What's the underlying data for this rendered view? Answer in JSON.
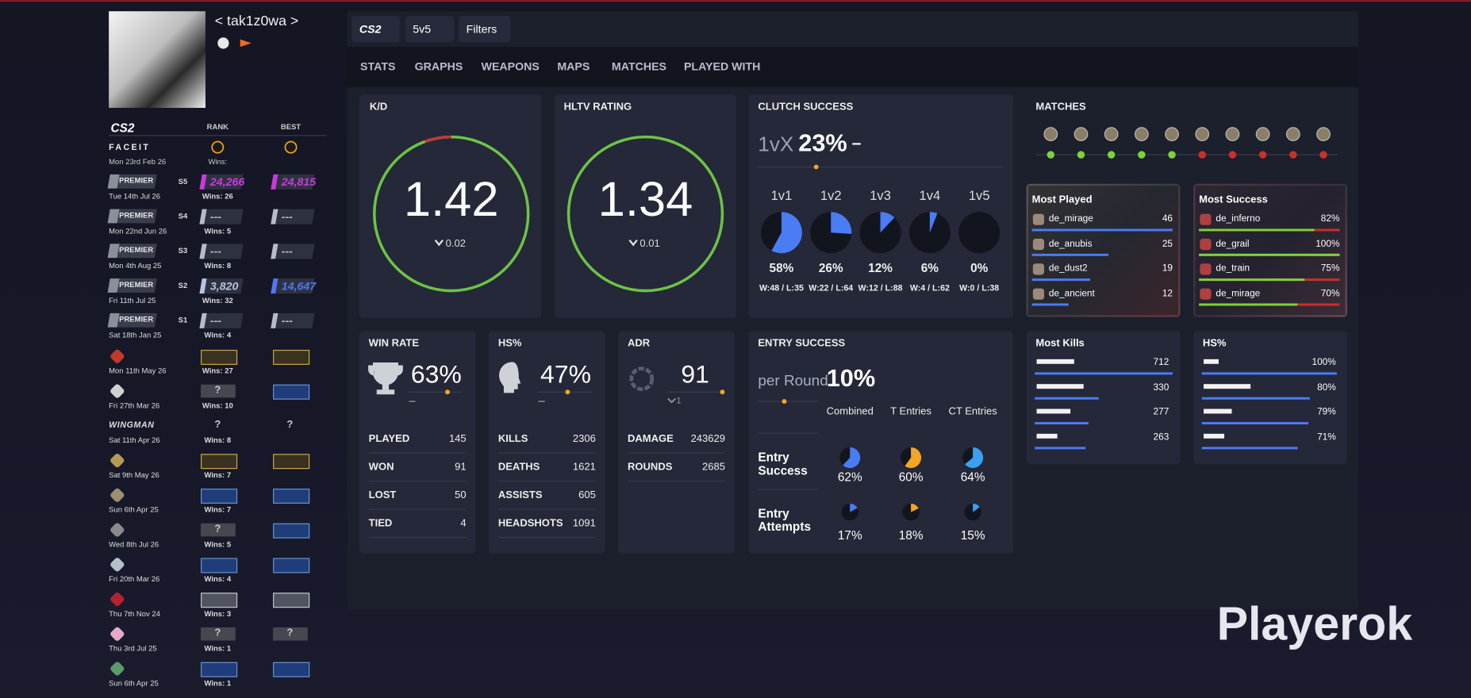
{
  "profile": {
    "name": "< tak1z0wa >"
  },
  "tabs": {
    "game": "CS2",
    "mode": "5v5",
    "filters": "Filters"
  },
  "nav": [
    "STATS",
    "GRAPHS",
    "WEAPONS",
    "MAPS",
    "MATCHES",
    "PLAYED WITH"
  ],
  "ranks": {
    "logo": "CS2",
    "rank_header": "RANK",
    "best_header": "BEST",
    "faceit": {
      "label": "FACEIT",
      "wins": "Wins:",
      "date": "Mon 23rd Feb 26"
    },
    "premier": [
      {
        "label": "PREMIER",
        "season": "S5",
        "rank": "24,266",
        "best": "24,815",
        "wins": "Wins: 26",
        "date": "Tue 14th Jul 26",
        "rank_color": "#c83adb",
        "best_color": "#c83adb"
      },
      {
        "label": "PREMIER",
        "season": "S4",
        "rank": "---",
        "best": "---",
        "wins": "Wins: 5",
        "date": "Mon 22nd Jun 26",
        "rank_color": "#b7bccb",
        "best_color": "#b7bccb"
      },
      {
        "label": "PREMIER",
        "season": "S3",
        "rank": "---",
        "best": "---",
        "wins": "Wins: 8",
        "date": "Mon 4th Aug 25",
        "rank_color": "#b7bccb",
        "best_color": "#b7bccb"
      },
      {
        "label": "PREMIER",
        "season": "S2",
        "rank": "3,820",
        "best": "14,647",
        "wins": "Wins: 32",
        "date": "Fri 11th Jul 25",
        "rank_color": "#b7c3dc",
        "best_color": "#5078f0"
      },
      {
        "label": "PREMIER",
        "season": "S1",
        "rank": "---",
        "best": "---",
        "wins": "Wins: 4",
        "date": "Sat 18th Jan 25",
        "rank_color": "#b7bccb",
        "best_color": "#b7bccb"
      }
    ],
    "maps": [
      {
        "icon_color": "#c0392b",
        "rank_style": "gold",
        "best_style": "gold",
        "wins": "Wins: 27",
        "date": "Mon 11th May 26"
      },
      {
        "icon_color": "#d0d0d0",
        "rank_style": "gray",
        "rank": "?",
        "best_style": "blue",
        "wins": "Wins: 10",
        "date": "Fri 27th Mar 26"
      },
      {
        "label": "WINGMAN",
        "rank_style": "dark",
        "rank": "?",
        "best_style": "dark",
        "best": "?",
        "wins": "Wins: 8",
        "date": "Sat 11th Apr 26"
      },
      {
        "icon_color": "#b59a55",
        "rank_style": "gold",
        "best_style": "gold",
        "wins": "Wins: 7",
        "date": "Sat 9th May 26"
      },
      {
        "icon_color": "#9a9070",
        "rank_style": "blue",
        "best_style": "blue",
        "wins": "Wins: 7",
        "date": "Sun 6th Apr 25"
      },
      {
        "icon_color": "#8a8a8a",
        "rank_style": "gray",
        "rank": "?",
        "best_style": "blue",
        "wins": "Wins: 5",
        "date": "Wed 8th Jul 26"
      },
      {
        "icon_color": "#b5c0c8",
        "rank_style": "blue",
        "best_style": "blue",
        "wins": "Wins: 4",
        "date": "Fri 20th Mar 26"
      },
      {
        "icon_color": "#b3242f",
        "rank_style": "silver",
        "best_style": "silver",
        "wins": "Wins: 3",
        "date": "Thu 7th Nov 24"
      },
      {
        "icon_color": "#e8a8c8",
        "rank_style": "gray",
        "rank": "?",
        "best_style": "gray",
        "best": "?",
        "wins": "Wins: 1",
        "date": "Thu 3rd Jul 25"
      },
      {
        "icon_color": "#5a9a6a",
        "rank_style": "blue",
        "best_style": "blue",
        "wins": "Wins: 1",
        "date": "Sun 6th Apr 25"
      }
    ]
  },
  "kd": {
    "title": "K/D",
    "value": "1.42",
    "delta": "0.02"
  },
  "hltv": {
    "title": "HLTV RATING",
    "value": "1.34",
    "delta": "0.01"
  },
  "clutch": {
    "title": "CLUTCH SUCCESS",
    "prefix": "1vX",
    "value": "23%",
    "trend": "–",
    "items": [
      {
        "label": "1v1",
        "pct": "58%",
        "record": "W:48 / L:35"
      },
      {
        "label": "1v2",
        "pct": "26%",
        "record": "W:22 / L:64"
      },
      {
        "label": "1v3",
        "pct": "12%",
        "record": "W:12 / L:88"
      },
      {
        "label": "1v4",
        "pct": "6%",
        "record": "W:4 / L:62"
      },
      {
        "label": "1v5",
        "pct": "0%",
        "record": "W:0 / L:38"
      }
    ]
  },
  "matches": {
    "title": "MATCHES",
    "results": [
      "win",
      "win",
      "win",
      "win",
      "win",
      "loss",
      "loss",
      "loss",
      "loss",
      "loss"
    ]
  },
  "most_played": {
    "title": "Most Played",
    "rows": [
      {
        "map": "de_mirage",
        "count": 46
      },
      {
        "map": "de_anubis",
        "count": 25
      },
      {
        "map": "de_dust2",
        "count": 19
      },
      {
        "map": "de_ancient",
        "count": 12
      }
    ]
  },
  "most_success": {
    "title": "Most Success",
    "rows": [
      {
        "map": "de_inferno",
        "pct": "82%"
      },
      {
        "map": "de_grail",
        "pct": "100%"
      },
      {
        "map": "de_train",
        "pct": "75%"
      },
      {
        "map": "de_mirage",
        "pct": "70%"
      }
    ]
  },
  "win_rate": {
    "title": "WIN RATE",
    "value": "63%",
    "trend": "–",
    "stats": [
      {
        "label": "PLAYED",
        "value": 145
      },
      {
        "label": "WON",
        "value": 91
      },
      {
        "label": "LOST",
        "value": 50
      },
      {
        "label": "TIED",
        "value": 4
      }
    ]
  },
  "hs": {
    "title": "HS%",
    "value": "47%",
    "trend": "–",
    "stats": [
      {
        "label": "KILLS",
        "value": 2306
      },
      {
        "label": "DEATHS",
        "value": 1621
      },
      {
        "label": "ASSISTS",
        "value": 605
      },
      {
        "label": "HEADSHOTS",
        "value": 1091
      }
    ]
  },
  "adr": {
    "title": "ADR",
    "value": "91",
    "delta": "1",
    "stats": [
      {
        "label": "DAMAGE",
        "value": 243629
      },
      {
        "label": "ROUNDS",
        "value": 2685
      }
    ]
  },
  "entry": {
    "title": "ENTRY SUCCESS",
    "prefix": "per Round",
    "value": "10%",
    "columns": [
      "Combined",
      "T Entries",
      "CT Entries"
    ],
    "rows": [
      {
        "label": "Entry Success",
        "values": [
          "62%",
          "60%",
          "64%"
        ]
      },
      {
        "label": "Entry Attempts",
        "values": [
          "17%",
          "18%",
          "15%"
        ]
      }
    ],
    "colors": [
      "#4a7cf5",
      "#f5a623",
      "#3aa0f0"
    ]
  },
  "most_kills": {
    "title": "Most Kills",
    "values": [
      712,
      330,
      277,
      263
    ]
  },
  "hs_weapons": {
    "title": "HS%",
    "values": [
      "100%",
      "80%",
      "79%",
      "71%"
    ]
  },
  "watermark": "Playerok"
}
